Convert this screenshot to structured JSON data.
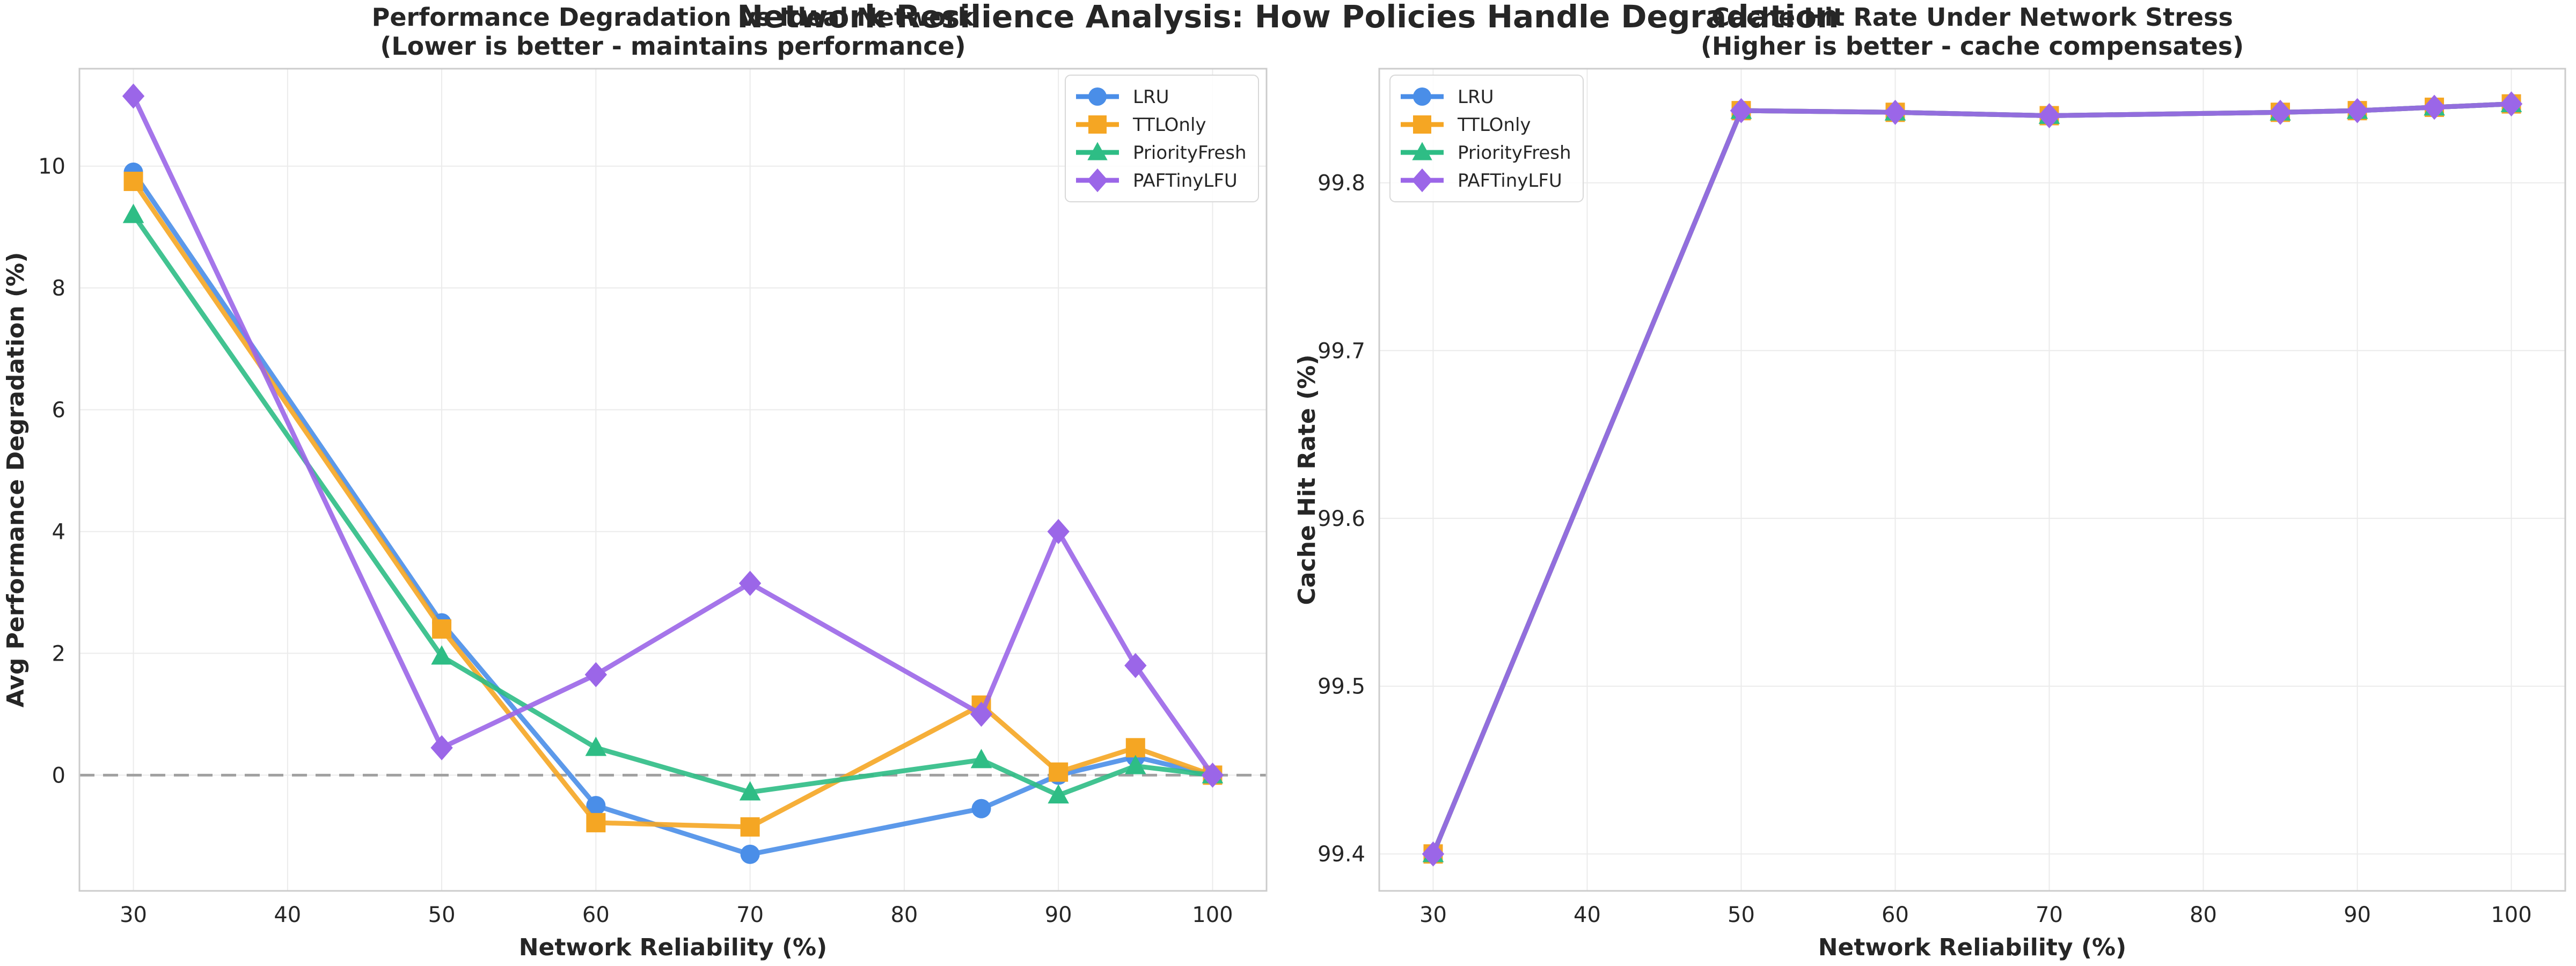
{
  "figure": {
    "suptitle": "Network Resilience Analysis: How Policies Handle Degradation"
  },
  "series_styles": [
    {
      "name": "LRU",
      "color": "#4a8ee8",
      "marker": "circle"
    },
    {
      "name": "TTLOnly",
      "color": "#f5a623",
      "marker": "square"
    },
    {
      "name": "PriorityFresh",
      "color": "#2ebd85",
      "marker": "triangle"
    },
    {
      "name": "PAFTinyLFU",
      "color": "#9b66e8",
      "marker": "diamond"
    }
  ],
  "chart_data": [
    {
      "type": "line",
      "title": "Performance Degradation vs Ideal Network",
      "subtitle": "(Lower is better - maintains performance)",
      "xlabel": "Network Reliability (%)",
      "ylabel": "Avg Performance Degradation (%)",
      "x": [
        30,
        50,
        60,
        70,
        85,
        90,
        95,
        100
      ],
      "xlim": [
        26.5,
        103.5
      ],
      "ylim": [
        -1.9,
        11.6
      ],
      "xticks": [
        30,
        40,
        50,
        60,
        70,
        80,
        90,
        100
      ],
      "yticks": [
        0,
        2,
        4,
        6,
        8,
        10
      ],
      "grid": true,
      "legend": "upper right",
      "reference_line": {
        "y": 0,
        "style": "dashed",
        "color": "#a0a0a0"
      },
      "series": [
        {
          "name": "LRU",
          "values": [
            9.9,
            2.5,
            -0.5,
            -1.3,
            -0.55,
            0.0,
            0.3,
            0.0
          ]
        },
        {
          "name": "TTLOnly",
          "values": [
            9.75,
            2.4,
            -0.78,
            -0.85,
            1.15,
            0.05,
            0.45,
            0.0
          ]
        },
        {
          "name": "PriorityFresh",
          "values": [
            9.2,
            1.95,
            0.45,
            -0.28,
            0.25,
            -0.33,
            0.15,
            0.0
          ]
        },
        {
          "name": "PAFTinyLFU",
          "values": [
            11.15,
            0.45,
            1.65,
            3.15,
            1.0,
            4.0,
            1.8,
            0.0
          ]
        }
      ]
    },
    {
      "type": "line",
      "title": "Cache Hit Rate Under Network Stress",
      "subtitle": "(Higher is better - cache compensates)",
      "xlabel": "Network Reliability (%)",
      "ylabel": "Cache Hit Rate (%)",
      "x": [
        30,
        50,
        60,
        70,
        85,
        90,
        95,
        100
      ],
      "xlim": [
        26.5,
        103.5
      ],
      "ylim": [
        99.378,
        99.868
      ],
      "xticks": [
        30,
        40,
        50,
        60,
        70,
        80,
        90,
        100
      ],
      "yticks": [
        99.4,
        99.5,
        99.6,
        99.7,
        99.8
      ],
      "grid": true,
      "legend": "upper left",
      "series": [
        {
          "name": "LRU",
          "values": [
            99.4,
            99.843,
            99.842,
            99.84,
            99.842,
            99.843,
            99.845,
            99.847
          ]
        },
        {
          "name": "TTLOnly",
          "values": [
            99.4,
            99.843,
            99.842,
            99.84,
            99.842,
            99.843,
            99.845,
            99.847
          ]
        },
        {
          "name": "PriorityFresh",
          "values": [
            99.4,
            99.843,
            99.842,
            99.84,
            99.842,
            99.843,
            99.845,
            99.847
          ]
        },
        {
          "name": "PAFTinyLFU",
          "values": [
            99.4,
            99.843,
            99.842,
            99.84,
            99.842,
            99.843,
            99.845,
            99.847
          ]
        }
      ]
    }
  ]
}
